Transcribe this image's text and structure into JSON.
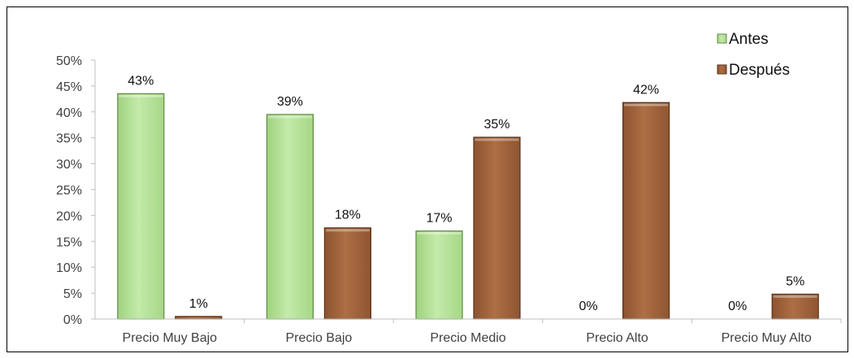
{
  "chart_data": {
    "type": "bar",
    "categories": [
      "Precio Muy Bajo",
      "Precio Bajo",
      "Precio Medio",
      "Precio Alto",
      "Precio Muy Alto"
    ],
    "series": [
      {
        "name": "Antes",
        "values": [
          43.5,
          39.5,
          17,
          0,
          0
        ],
        "labels": [
          "43%",
          "39%",
          "17%",
          "0%",
          "0%"
        ],
        "color": "#b5e09a",
        "edge": "#5f8a44"
      },
      {
        "name": "Después",
        "values": [
          0.5,
          17.6,
          35.1,
          41.8,
          4.8
        ],
        "labels": [
          "1%",
          "18%",
          "35%",
          "42%",
          "5%"
        ],
        "color": "#a0623a",
        "edge": "#5c3319"
      }
    ],
    "ylim": [
      0,
      50
    ],
    "yticks": [
      0,
      5,
      10,
      15,
      20,
      25,
      30,
      35,
      40,
      45,
      50
    ],
    "ytick_labels": [
      "0%",
      "5%",
      "10%",
      "15%",
      "20%",
      "25%",
      "30%",
      "35%",
      "40%",
      "45%",
      "50%"
    ],
    "title": "",
    "xlabel": "",
    "ylabel": "",
    "grid": false,
    "legend_position": "top-right"
  }
}
